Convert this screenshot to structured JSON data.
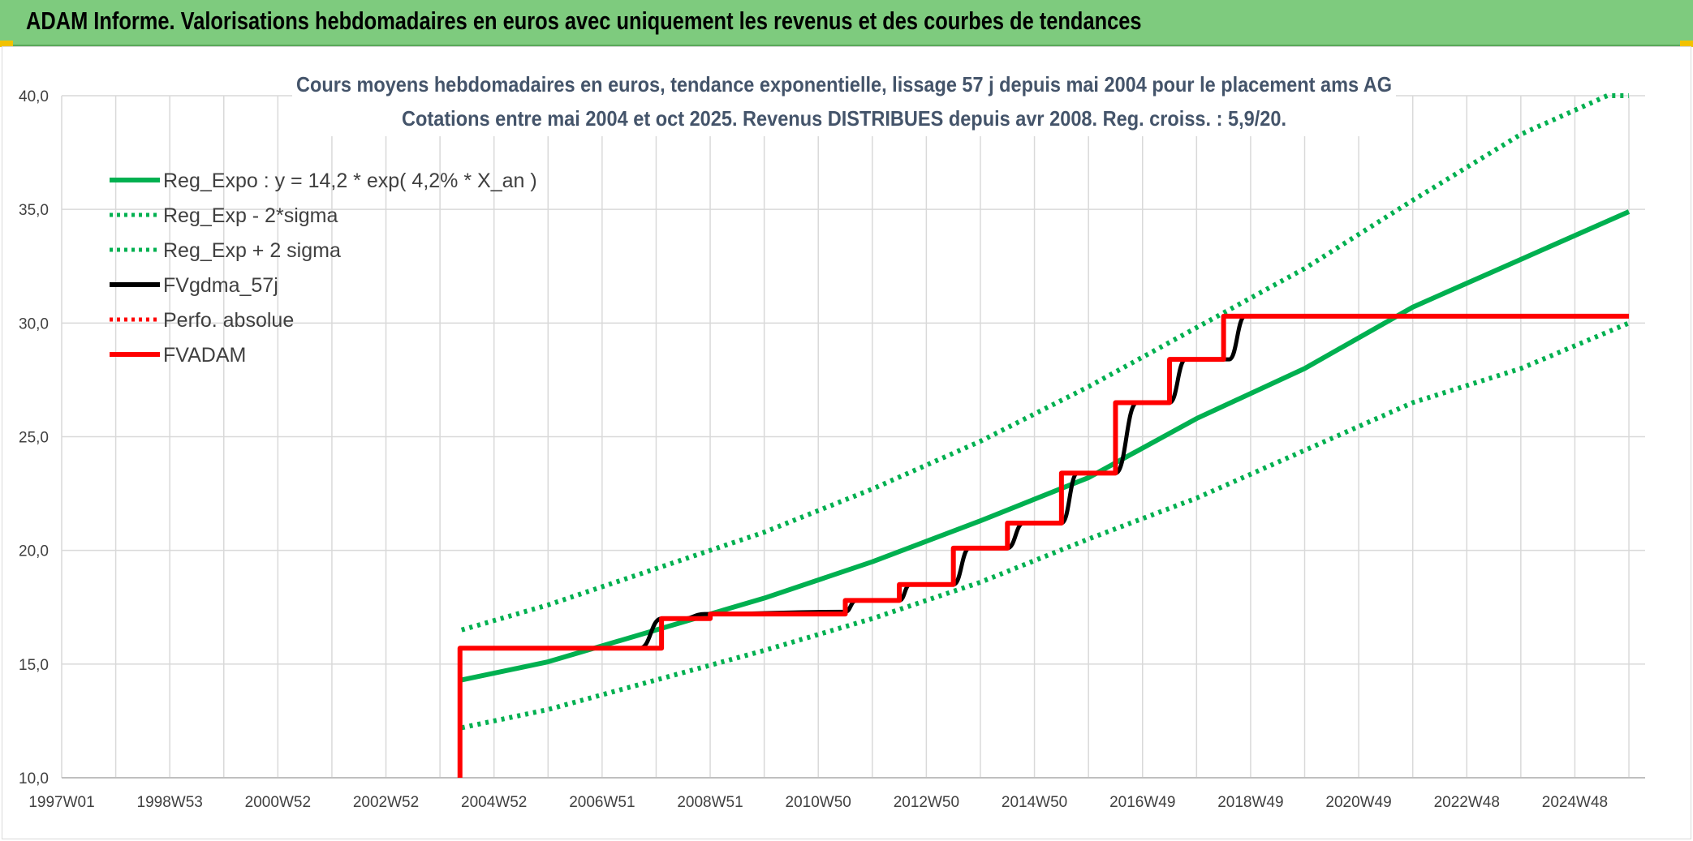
{
  "header": {
    "title": "ADAM Informe. Valorisations hebdomadaires en euros avec uniquement les revenus et des courbes de tendances"
  },
  "chart_data": {
    "type": "line",
    "title": "Cours moyens hebdomadaires en euros, tendance exponentielle, lissage 57 j depuis mai 2004 pour le placement ams AG",
    "subtitle": "Cotations entre mai 2004 et oct 2025. Revenus DISTRIBUES depuis avr 2008. Reg. croiss. : 5,9/20.",
    "xlabel": "",
    "ylabel": "",
    "x_range_years": [
      1997.0,
      2026.3
    ],
    "ylim": [
      10,
      40
    ],
    "grid": true,
    "legend_position": "top-left",
    "x_tick_labels": [
      "1997W01",
      "1998W53",
      "2000W52",
      "2002W52",
      "2004W52",
      "2006W51",
      "2008W51",
      "2010W50",
      "2012W50",
      "2014W50",
      "2016W49",
      "2018W49",
      "2020W49",
      "2022W48",
      "2024W48"
    ],
    "x_tick_years": [
      1997.0,
      1999.0,
      2001.0,
      2003.0,
      2005.0,
      2007.0,
      2009.0,
      2011.0,
      2013.0,
      2015.0,
      2017.0,
      2019.0,
      2021.0,
      2023.0,
      2025.0
    ],
    "y_tick_labels": [
      "10,0",
      "15,0",
      "20,0",
      "25,0",
      "30,0",
      "35,0",
      "40,0"
    ],
    "y_ticks": [
      10,
      15,
      20,
      25,
      30,
      35,
      40
    ],
    "series": [
      {
        "name": "Reg_Expo : y = 14,2 * exp( 4,2% *  X_an )",
        "style": "solid",
        "color": "#00b050",
        "x": [
          2004.4,
          2006.0,
          2008.0,
          2010.0,
          2012.0,
          2014.0,
          2016.0,
          2018.0,
          2020.0,
          2022.0,
          2024.0,
          2026.0
        ],
        "values": [
          14.3,
          15.1,
          16.5,
          17.9,
          19.5,
          21.3,
          23.2,
          25.8,
          28.0,
          30.7,
          32.8,
          34.9
        ]
      },
      {
        "name": "Reg_Exp - 2*sigma",
        "style": "dotted",
        "color": "#00b050",
        "x": [
          2004.4,
          2006.0,
          2008.0,
          2010.0,
          2012.0,
          2014.0,
          2016.0,
          2018.0,
          2020.0,
          2022.0,
          2024.0,
          2026.0
        ],
        "values": [
          12.2,
          13.0,
          14.3,
          15.6,
          17.0,
          18.6,
          20.5,
          22.3,
          24.4,
          26.5,
          28.0,
          30.0
        ]
      },
      {
        "name": "Reg_Exp + 2 sigma",
        "style": "dotted",
        "color": "#00b050",
        "x": [
          2004.4,
          2006.0,
          2008.0,
          2010.0,
          2012.0,
          2014.0,
          2016.0,
          2018.0,
          2020.0,
          2022.0,
          2024.0,
          2025.6,
          2026.0
        ],
        "values": [
          16.5,
          17.6,
          19.2,
          20.8,
          22.7,
          24.8,
          27.2,
          29.8,
          32.4,
          35.4,
          38.3,
          40.0,
          40.0
        ]
      },
      {
        "name": "FVgdma_57j",
        "style": "solid",
        "color": "#000000",
        "x": [
          2004.4,
          2007.7,
          2008.1,
          2008.5,
          2008.9,
          2011.5,
          2011.7,
          2012.5,
          2012.7,
          2013.5,
          2013.8,
          2014.5,
          2014.8,
          2015.5,
          2015.8,
          2016.5,
          2016.9,
          2017.5,
          2017.8,
          2018.6,
          2018.9,
          2026.0
        ],
        "values": [
          15.7,
          15.7,
          17.0,
          17.0,
          17.2,
          17.3,
          17.8,
          17.8,
          18.5,
          18.5,
          20.1,
          20.1,
          21.2,
          21.2,
          23.4,
          23.4,
          26.5,
          26.5,
          28.4,
          28.4,
          30.3,
          30.3
        ]
      },
      {
        "name": "Perfo. absolue",
        "style": "dotted",
        "color": "#ff0000",
        "x": [],
        "values": []
      },
      {
        "name": "FVADAM",
        "style": "step",
        "color": "#ff0000",
        "x": [
          2004.37,
          2004.37,
          2004.37,
          2008.1,
          2008.1,
          2009.0,
          2009.0,
          2011.5,
          2011.5,
          2012.5,
          2012.5,
          2013.5,
          2013.5,
          2014.5,
          2014.5,
          2015.5,
          2015.5,
          2016.5,
          2016.5,
          2017.5,
          2017.5,
          2018.5,
          2018.5,
          2026.0
        ],
        "values": [
          10.0,
          10.0,
          15.7,
          15.7,
          17.0,
          17.0,
          17.2,
          17.2,
          17.8,
          17.8,
          18.5,
          18.5,
          20.1,
          20.1,
          21.2,
          21.2,
          23.4,
          23.4,
          26.5,
          26.5,
          28.4,
          28.4,
          30.3,
          30.3
        ]
      }
    ]
  }
}
